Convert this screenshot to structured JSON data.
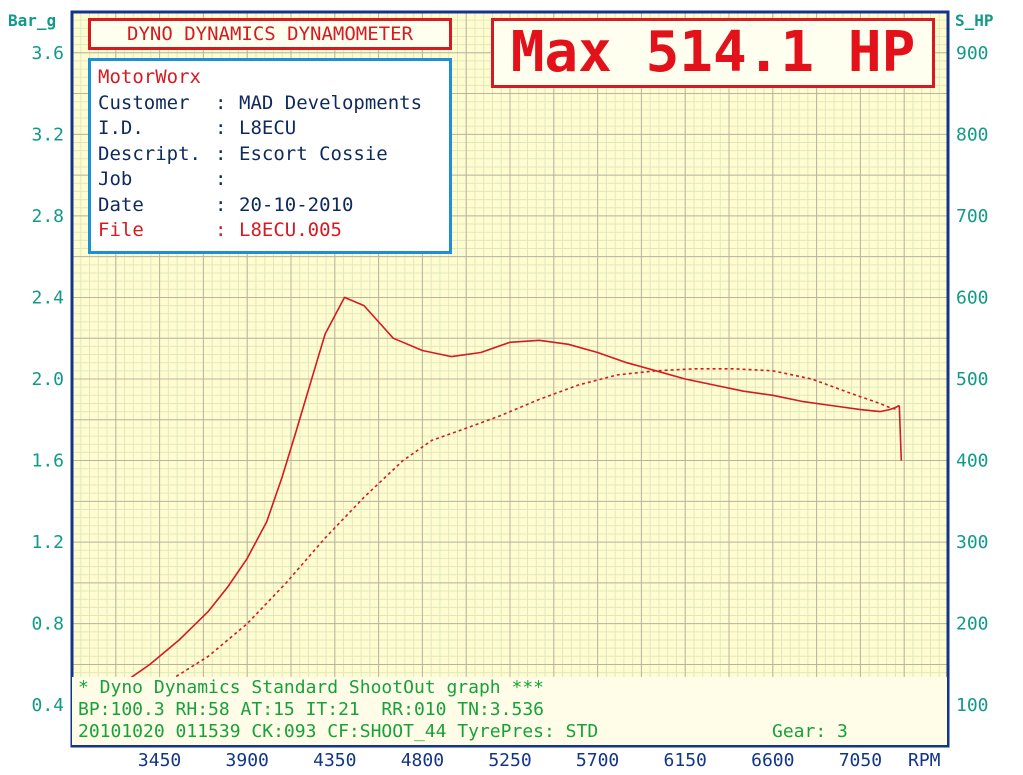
{
  "header": {
    "title": "DYNO DYNAMICS DYNAMOMETER",
    "max_label": "Max 514.1 HP"
  },
  "info": {
    "shop": "MotorWorx",
    "rows": [
      {
        "label": "Customer",
        "value": "MAD Developments"
      },
      {
        "label": "I.D.",
        "value": "L8ECU"
      },
      {
        "label": "Descript.",
        "value": "Escort Cossie"
      },
      {
        "label": "Job",
        "value": ""
      },
      {
        "label": "Date",
        "value": "20-10-2010"
      },
      {
        "label": "File",
        "value": "L8ECU.005"
      }
    ]
  },
  "footer": {
    "line1": "* Dyno Dynamics Standard ShootOut graph ***",
    "line2": "BP:100.3 RH:58 AT:15 IT:21  RR:010 TN:3.536",
    "line3": "20101020 011539 CK:093 CF:SHOOT_44 TyrePres: STD",
    "gear": "Gear: 3"
  },
  "colors": {
    "grid_major": "#b8b4a0",
    "grid_minor": "#e0e8c0",
    "plot_bg": "#fffdd0",
    "frame": "#12358a",
    "curve": "#d51a22",
    "axis_text": "#129a88",
    "footer_text": "#16a23a"
  },
  "chart_data": {
    "type": "line",
    "left_axis": {
      "title": "Bar_g",
      "ylim": [
        0.2,
        3.8
      ],
      "ticks": [
        "0.4",
        "0.8",
        "1.2",
        "1.6",
        "2.0",
        "2.4",
        "2.8",
        "3.2",
        "3.6"
      ]
    },
    "right_axis": {
      "title": "S_HP",
      "ylim": [
        50,
        950
      ],
      "ticks": [
        "100",
        "200",
        "300",
        "400",
        "500",
        "600",
        "700",
        "800",
        "900"
      ]
    },
    "x_axis": {
      "unit": "RPM",
      "xlim": [
        3000,
        7500
      ],
      "ticks": [
        "3450",
        "3900",
        "4350",
        "4800",
        "5250",
        "5700",
        "6150",
        "6600",
        "7050"
      ]
    },
    "grid": true,
    "series": [
      {
        "axis": "left",
        "style": "solid",
        "x": [
          3100,
          3250,
          3400,
          3550,
          3700,
          3800,
          3900,
          4000,
          4080,
          4150,
          4200,
          4250,
          4300,
          4400,
          4500,
          4650,
          4800,
          4950,
          5100,
          5250,
          5400,
          5550,
          5700,
          5850,
          6000,
          6150,
          6300,
          6450,
          6600,
          6750,
          6900,
          7050,
          7150,
          7200,
          7230,
          7250
        ],
        "y": [
          0.4,
          0.5,
          0.6,
          0.72,
          0.86,
          0.98,
          1.12,
          1.3,
          1.52,
          1.74,
          1.9,
          2.06,
          2.22,
          2.4,
          2.36,
          2.2,
          2.14,
          2.11,
          2.13,
          2.18,
          2.19,
          2.17,
          2.13,
          2.08,
          2.04,
          2.0,
          1.97,
          1.94,
          1.92,
          1.89,
          1.87,
          1.85,
          1.84,
          1.85,
          1.86,
          1.87
        ]
      },
      {
        "axis": "left",
        "style": "dashed",
        "x": [
          3100,
          3300,
          3500,
          3700,
          3900,
          4100,
          4300,
          4500,
          4700,
          4850,
          5000,
          5200,
          5400,
          5600,
          5800,
          6000,
          6200,
          6400,
          6600,
          6800,
          7000,
          7150,
          7200,
          7240
        ],
        "y": [
          0.32,
          0.42,
          0.52,
          0.64,
          0.8,
          1.0,
          1.22,
          1.42,
          1.6,
          1.7,
          1.75,
          1.82,
          1.9,
          1.97,
          2.02,
          2.04,
          2.05,
          2.05,
          2.04,
          2.0,
          1.93,
          1.88,
          1.86,
          1.85
        ]
      },
      {
        "axis": "left",
        "style": "solid",
        "x": [
          7250,
          7260
        ],
        "y": [
          1.87,
          1.6
        ]
      }
    ]
  }
}
